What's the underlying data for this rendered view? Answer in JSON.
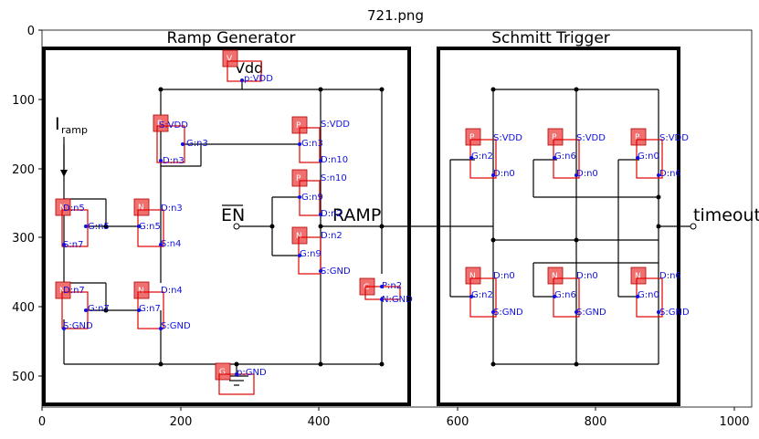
{
  "figure": {
    "title": "721.png",
    "x_ticks": [
      "0",
      "200",
      "400",
      "600",
      "800",
      "1000"
    ],
    "y_ticks": [
      "0",
      "100",
      "200",
      "300",
      "400",
      "500"
    ]
  },
  "blocks": {
    "ramp_title": "Ramp Generator",
    "schmitt_title": "Schmitt Trigger"
  },
  "circuit_text": {
    "vdd": "Vdd",
    "iramp": "I",
    "iramp_sub": "ramp",
    "en": "EN",
    "ramp": "RAMP",
    "timeout": "timeout"
  },
  "components": [
    {
      "tag": "V",
      "labels": [
        "p:VDD"
      ]
    },
    {
      "tag": "P",
      "labels": [
        "S:VDD",
        "G:n3",
        "D:n3"
      ]
    },
    {
      "tag": "P",
      "labels": [
        "S:VDD",
        "G:n3",
        "D:n10"
      ]
    },
    {
      "tag": "P",
      "labels": [
        "S:n10",
        "G:n9",
        "D:n2"
      ]
    },
    {
      "tag": "N",
      "labels": [
        "D:n5",
        "G:n5",
        "S:n7"
      ]
    },
    {
      "tag": "N",
      "labels": [
        "D:n3",
        "G:n5",
        "S:n4"
      ]
    },
    {
      "tag": "N",
      "labels": [
        "D:n2",
        "G:n9",
        "S:GND"
      ]
    },
    {
      "tag": "N",
      "labels": [
        "D:n7",
        "G:n7",
        "S:GND"
      ]
    },
    {
      "tag": "N",
      "labels": [
        "D:n4",
        "G:n7",
        "S:GND"
      ]
    },
    {
      "tag": "C",
      "labels": [
        "P:n2",
        "N:GND"
      ]
    },
    {
      "tag": "G",
      "labels": [
        "p:GND"
      ]
    },
    {
      "tag": "P",
      "labels": [
        "S:VDD",
        "G:n2",
        "D:n0"
      ]
    },
    {
      "tag": "P",
      "labels": [
        "S:VDD",
        "G:n6",
        "D:n0"
      ]
    },
    {
      "tag": "P",
      "labels": [
        "S:VDD",
        "G:n0",
        "D:n6"
      ]
    },
    {
      "tag": "N",
      "labels": [
        "D:n0",
        "G:n2",
        "S:GND"
      ]
    },
    {
      "tag": "N",
      "labels": [
        "D:n0",
        "G:n6",
        "S:GND"
      ]
    },
    {
      "tag": "N",
      "labels": [
        "D:n6",
        "G:n0",
        "S:GND"
      ]
    }
  ]
}
